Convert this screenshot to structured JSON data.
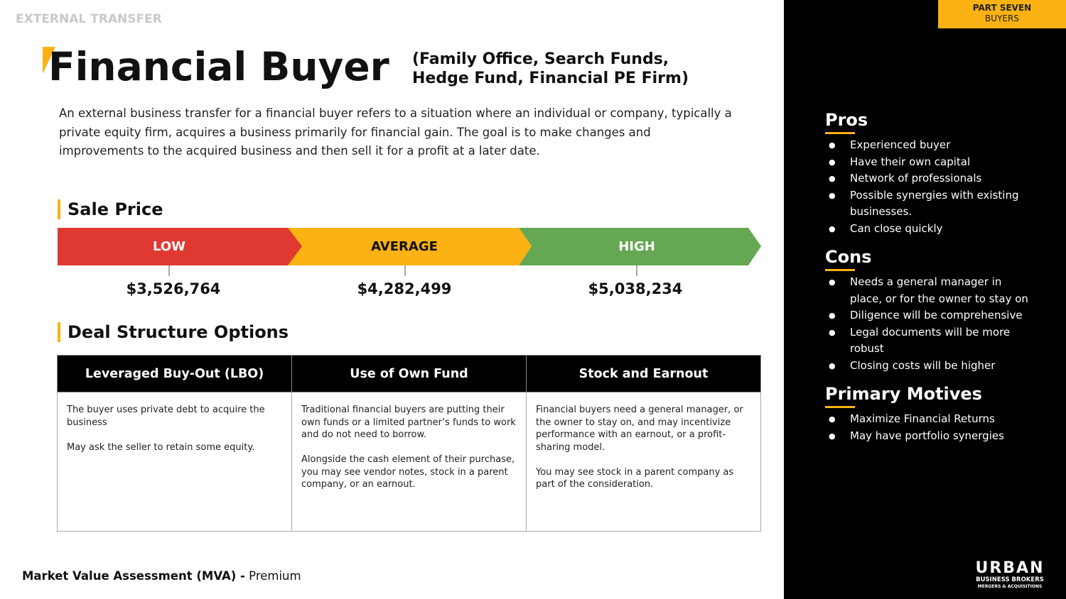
{
  "header": {
    "section": "EXTERNAL TRANSFER",
    "part": "PART SEVEN",
    "part_sub": "BUYERS",
    "title": "Financial Buyer",
    "subtitle": [
      "(Family Office, Search Funds,",
      "Hedge Fund, Financial PE Firm)"
    ]
  },
  "intro": "An external business transfer for a financial buyer refers to a situation where an individual or company, typically a private equity firm, acquires a business primarily for financial gain. The goal is to make changes and improvements to the acquired business and then sell it for a profit at a later date.",
  "sale_price": {
    "heading": "Sale Price",
    "tiers": [
      {
        "label": "LOW",
        "price": "$3,526,764"
      },
      {
        "label": "AVERAGE",
        "price": "$4,282,499"
      },
      {
        "label": "HIGH",
        "price": "$5,038,234"
      }
    ]
  },
  "deal_structure": {
    "heading": "Deal Structure Options",
    "columns": [
      {
        "title": "Leveraged Buy-Out (LBO)",
        "paragraphs": [
          "The buyer uses private debt to acquire the business",
          "May ask the seller to retain some equity."
        ]
      },
      {
        "title": "Use of Own Fund",
        "paragraphs": [
          "Traditional financial buyers are putting their own funds or a limited partner’s funds to work and do not need to borrow.",
          "Alongside the cash element of their purchase, you may see vendor notes, stock in a parent company, or an earnout."
        ]
      },
      {
        "title": "Stock and Earnout",
        "paragraphs": [
          "Financial buyers need a general manager, or the owner to stay on, and may incentivize performance with an earnout, or a profit-sharing model.",
          "You may see stock in a parent company as part of the consideration."
        ]
      }
    ]
  },
  "sidebar": [
    {
      "heading": "Pros",
      "items": [
        "Experienced buyer",
        "Have their own capital",
        "Network of professionals",
        "Possible synergies with existing businesses.",
        "Can close quickly"
      ]
    },
    {
      "heading": "Cons",
      "items": [
        "Needs a general manager in place, or for the owner to stay on",
        "Diligence will be comprehensive",
        "Legal documents will be more robust",
        "Closing costs will be higher"
      ]
    },
    {
      "heading": "Primary Motives",
      "items": [
        "Maximize Financial Returns",
        "May have portfolio synergies"
      ]
    }
  ],
  "footer": {
    "label": "Market Value Assessment (MVA) -",
    "value": "Premium"
  },
  "logo": {
    "name": "URBAN",
    "line1": "BUSINESS BROKERS",
    "line2": "MERGERS & ACQUISITIONS"
  }
}
